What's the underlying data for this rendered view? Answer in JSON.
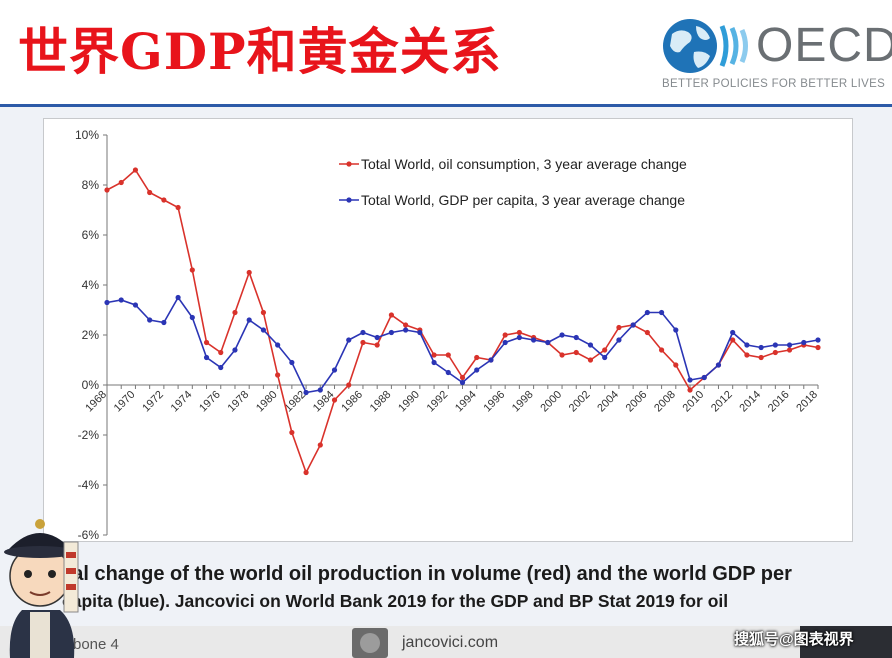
{
  "header": {
    "title": "世界GDP和黄金关系",
    "logo_text": "OECD",
    "logo_tagline": "BETTER POLICIES FOR BETTER LIVES"
  },
  "caption": {
    "line1": "ual change of the world oil production in volume (red) and the world GDP per",
    "line2": "capita (blue). Jancovici on World Bank 2019 for the GDP and BP Stat 2019 for oil"
  },
  "footer": {
    "left": "rbone 4",
    "middle": "jancovici.com",
    "watermark": "搜狐号@图表视界"
  },
  "colors": {
    "title": "#e8141b",
    "oil_series": "#d9322b",
    "gdp_series": "#2b35b5",
    "header_rule": "#2c5aa8"
  },
  "chart_data": {
    "type": "line",
    "x": [
      1968,
      1969,
      1970,
      1971,
      1972,
      1973,
      1974,
      1975,
      1976,
      1977,
      1978,
      1979,
      1980,
      1981,
      1982,
      1983,
      1984,
      1985,
      1986,
      1987,
      1988,
      1989,
      1990,
      1991,
      1992,
      1993,
      1994,
      1995,
      1996,
      1997,
      1998,
      1999,
      2000,
      2001,
      2002,
      2003,
      2004,
      2005,
      2006,
      2007,
      2008,
      2009,
      2010,
      2011,
      2012,
      2013,
      2014,
      2015,
      2016,
      2017,
      2018
    ],
    "series": [
      {
        "name": "Total World, oil consumption, 3 year average change",
        "color": "#d9322b",
        "values": [
          7.8,
          8.1,
          8.6,
          7.7,
          7.4,
          7.1,
          4.6,
          1.7,
          1.3,
          2.9,
          4.5,
          2.9,
          0.4,
          -1.9,
          -3.5,
          -2.4,
          -0.6,
          0.0,
          1.7,
          1.6,
          2.8,
          2.4,
          2.2,
          1.2,
          1.2,
          0.3,
          1.1,
          1.0,
          2.0,
          2.1,
          1.9,
          1.7,
          1.2,
          1.3,
          1.0,
          1.4,
          2.3,
          2.4,
          2.1,
          1.4,
          0.8,
          -0.2,
          0.3,
          0.8,
          1.8,
          1.2,
          1.1,
          1.3,
          1.4,
          1.6,
          1.5
        ]
      },
      {
        "name": "Total World, GDP per capita, 3 year average change",
        "color": "#2b35b5",
        "values": [
          3.3,
          3.4,
          3.2,
          2.6,
          2.5,
          3.5,
          2.7,
          1.1,
          0.7,
          1.4,
          2.6,
          2.2,
          1.6,
          0.9,
          -0.3,
          -0.2,
          0.6,
          1.8,
          2.1,
          1.9,
          2.1,
          2.2,
          2.1,
          0.9,
          0.5,
          0.1,
          0.6,
          1.0,
          1.7,
          1.9,
          1.8,
          1.7,
          2.0,
          1.9,
          1.6,
          1.1,
          1.8,
          2.4,
          2.9,
          2.9,
          2.2,
          0.2,
          0.3,
          0.8,
          2.1,
          1.6,
          1.5,
          1.6,
          1.6,
          1.7,
          1.8
        ]
      }
    ],
    "ylim": [
      -6,
      10
    ],
    "yticks": [
      "-6%",
      "-4%",
      "-2%",
      "0%",
      "2%",
      "4%",
      "6%",
      "8%",
      "10%"
    ],
    "xtick_labels": [
      "1968",
      "1970",
      "1972",
      "1974",
      "1976",
      "1978",
      "1980",
      "1982",
      "1984",
      "1986",
      "1988",
      "1990",
      "1992",
      "1994",
      "1996",
      "1998",
      "2000",
      "2002",
      "2004",
      "2006",
      "2008",
      "2010",
      "2012",
      "2014",
      "2016",
      "2018"
    ],
    "grid": false,
    "legend_position": "top-center"
  }
}
